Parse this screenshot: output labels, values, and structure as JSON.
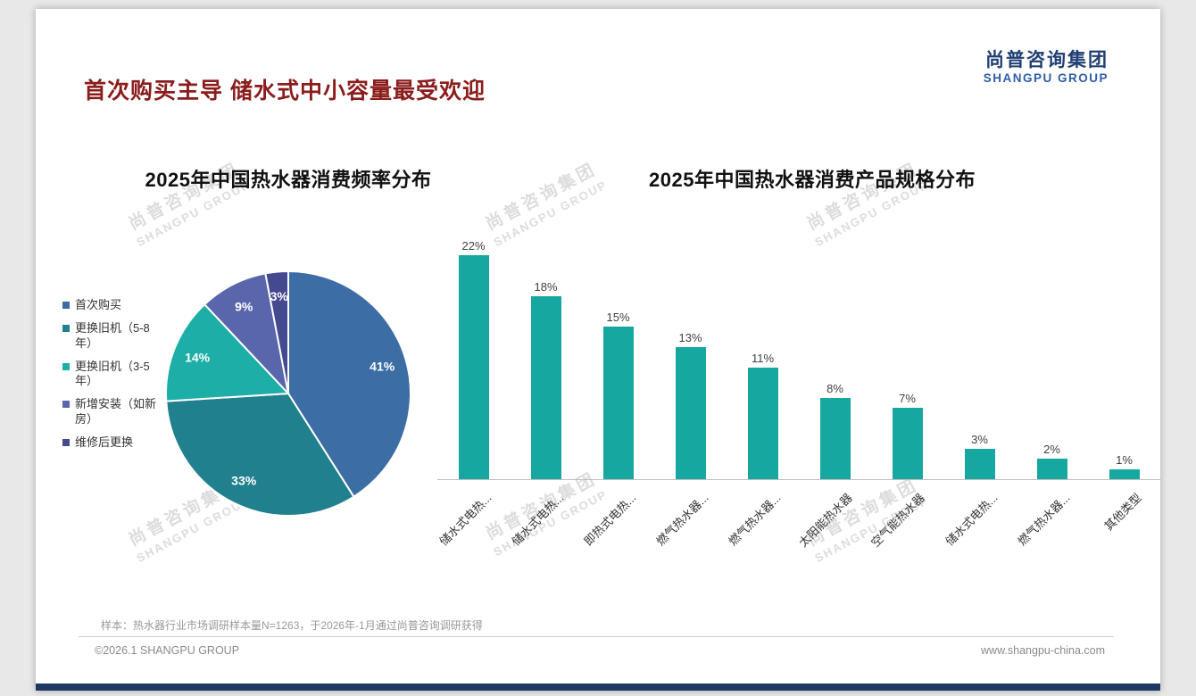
{
  "header": {
    "title": "首次购买主导 储水式中小容量最受欢迎"
  },
  "logo": {
    "cn": "尚普咨询集团",
    "en": "SHANGPU GROUP"
  },
  "watermark": {
    "cn": "尚普咨询集团",
    "en": "SHANGPU GROUP"
  },
  "chart_data": [
    {
      "type": "pie",
      "title": "2025年中国热水器消费频率分布",
      "labels": [
        "首次购买",
        "更换旧机（5-8年）",
        "更换旧机（3-5年）",
        "新增安装（如新房）",
        "维修后更换"
      ],
      "values": [
        41,
        33,
        14,
        9,
        3
      ],
      "colors": [
        "#3c6da4",
        "#20808d",
        "#1caea7",
        "#5a66ac",
        "#45498f"
      ],
      "value_suffix": "%",
      "legend_position": "left",
      "start_angle": "top",
      "direction": "clockwise"
    },
    {
      "type": "bar",
      "title": "2025年中国热水器消费产品规格分布",
      "categories": [
        "储水式电热...",
        "储水式电热...",
        "即热式电热...",
        "燃气热水器...",
        "燃气热水器...",
        "太阳能热水器",
        "空气能热水器",
        "储水式电热...",
        "燃气热水器...",
        "其他类型"
      ],
      "values": [
        22,
        18,
        15,
        13,
        11,
        8,
        7,
        3,
        2,
        1
      ],
      "bar_color": "#16a7a0",
      "ylim": [
        0,
        24
      ],
      "value_suffix": "%",
      "grid": false,
      "legend_position": "none"
    }
  ],
  "footer": {
    "sample_note": "样本：热水器行业市场调研样本量N=1263，于2026年-1月通过尚普咨询调研获得",
    "copyright": "©2026.1 SHANGPU GROUP",
    "website": "www.shangpu-china.com"
  }
}
